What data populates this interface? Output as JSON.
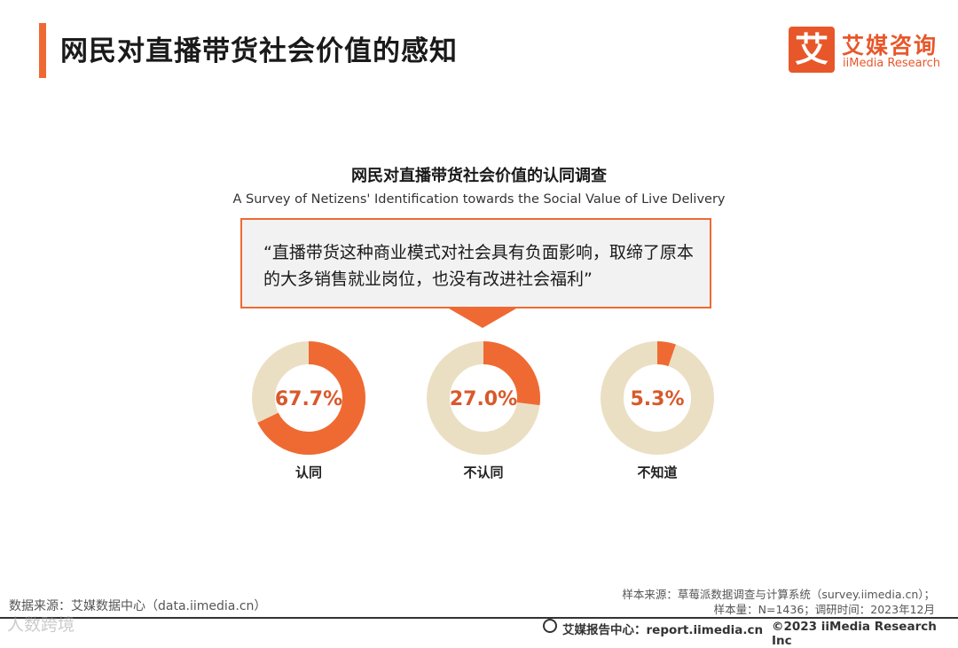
{
  "page": {
    "title": "网民对直播带货社会价值的感知"
  },
  "logo": {
    "mark": "艾",
    "cn": "艾媒咨询",
    "en": "iiMedia Research"
  },
  "quote": {
    "text": "“直播带货这种商业模式对社会具有负面影响，取缔了原本的大多销售就业岗位，也没有改进社会福利”"
  },
  "colors": {
    "accent": "#ef6a33",
    "remainder": "#ebdfc3",
    "value_text": "#d8592b"
  },
  "chart_data": {
    "type": "pie",
    "title": "网民对直播带货社会价值的认同调查",
    "subtitle": "A Survey of Netizens' Identification towards the Social Value of Live Delivery",
    "unit": "%",
    "categories": [
      "认同",
      "不认同",
      "不知道"
    ],
    "values": [
      67.7,
      27.0,
      5.3
    ],
    "value_labels": [
      "67.7%",
      "27.0%",
      "5.3%"
    ]
  },
  "footer": {
    "source_left": "数据来源：艾媒数据中心（data.iimedia.cn）",
    "source_right_1": "样本来源：草莓派数据调查与计算系统（survey.iimedia.cn）；",
    "source_right_2": "样本量：N=1436；调研时间：2023年12月",
    "report": "艾媒报告中心：report.iimedia.cn",
    "copyright": "©2023  iiMedia Research  Inc",
    "watermark": "人数跨境"
  }
}
